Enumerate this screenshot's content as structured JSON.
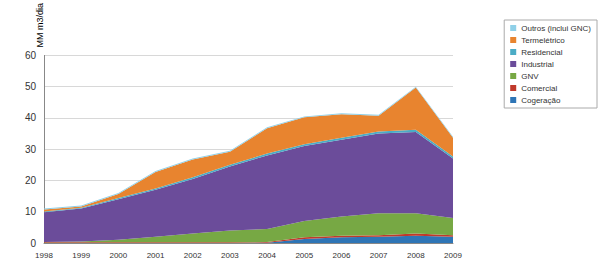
{
  "chart_data": {
    "type": "area",
    "stacked": true,
    "y_label": "MM m3/dia",
    "categories": [
      "1998",
      "1999",
      "2000",
      "2001",
      "2002",
      "2003",
      "2004",
      "2005",
      "2006",
      "2007",
      "2008",
      "2009"
    ],
    "ylim": [
      0,
      60
    ],
    "yticks": [
      0,
      10,
      20,
      30,
      40,
      50,
      60
    ],
    "grid": true,
    "legend": "right",
    "series": [
      {
        "name": "Outros (inclui GNC)",
        "color": "#8fd0e8",
        "values": [
          0.3,
          0.3,
          0.3,
          0.3,
          0.3,
          0.3,
          0.3,
          0.3,
          0.3,
          0.3,
          0.3,
          0.3
        ]
      },
      {
        "name": "Termelétrico",
        "color": "#e8842f",
        "values": [
          0.6,
          0.4,
          1.3,
          5.3,
          5.7,
          4.2,
          8.1,
          8.6,
          7.5,
          5,
          13.5,
          6
        ]
      },
      {
        "name": "Residencial",
        "color": "#4bacc6",
        "values": [
          0.3,
          0.3,
          0.4,
          0.4,
          0.5,
          0.5,
          0.6,
          0.6,
          0.7,
          0.7,
          0.7,
          0.7
        ]
      },
      {
        "name": "Industrial",
        "color": "#6b4c9a",
        "values": [
          9.5,
          10.5,
          13,
          15,
          17.5,
          20.5,
          23.5,
          24,
          24.5,
          25.5,
          26,
          19
        ]
      },
      {
        "name": "GNV",
        "color": "#77a844",
        "values": [
          0.1,
          0.3,
          0.8,
          1.8,
          2.8,
          3.8,
          4.2,
          5.2,
          6.2,
          7,
          6.5,
          5.5
        ]
      },
      {
        "name": "Comercial",
        "color": "#c0392b",
        "values": [
          0.2,
          0.2,
          0.2,
          0.2,
          0.2,
          0.2,
          0.2,
          0.5,
          0.5,
          0.5,
          0.7,
          0.5
        ]
      },
      {
        "name": "Cogeração",
        "color": "#2e75b6",
        "values": [
          0,
          0,
          0,
          0,
          0,
          0,
          0.1,
          1.3,
          1.8,
          2,
          2.3,
          2
        ]
      }
    ]
  }
}
